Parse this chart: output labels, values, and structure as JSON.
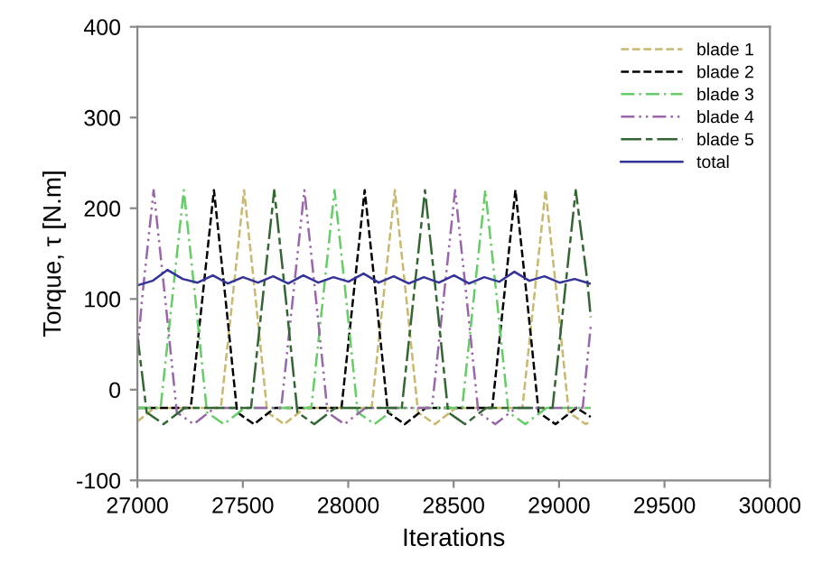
{
  "chart_data": {
    "type": "line",
    "xlabel": "Iterations",
    "ylabel": "Torque, τ [N.m]",
    "xlim": [
      27000,
      30000
    ],
    "xticks": [
      27000,
      27500,
      28000,
      28500,
      29000,
      29500,
      30000
    ],
    "ylim": [
      -100,
      400
    ],
    "yticks": [
      -100,
      0,
      100,
      200,
      300,
      400
    ],
    "grid": false,
    "legend": "top right",
    "marker": "none",
    "series": [
      {
        "name": "blade 1",
        "color": "#c8b870",
        "line_style": "dashed",
        "x": [
          27000,
          27081,
          27396,
          27451,
          27506,
          27561,
          27616,
          27696,
          27796,
          28111,
          28166,
          28221,
          28276,
          28331,
          28411,
          28511,
          28826,
          28881,
          28936,
          28991,
          29046,
          29126,
          29150
        ],
        "values": [
          -35,
          -20,
          -20,
          100,
          220,
          100,
          -25,
          -38,
          -20,
          -20,
          100,
          220,
          100,
          -25,
          -38,
          -20,
          -20,
          100,
          220,
          100,
          -25,
          -38,
          -35
        ]
      },
      {
        "name": "blade 2",
        "color": "#000000",
        "line_style": "dashed",
        "x": [
          27000,
          27253,
          27308,
          27363,
          27418,
          27473,
          27553,
          27653,
          27968,
          28023,
          28078,
          28133,
          28188,
          28268,
          28368,
          28683,
          28738,
          28793,
          28848,
          28903,
          28983,
          29083,
          29150
        ],
        "values": [
          -20,
          -20,
          100,
          220,
          100,
          -25,
          -38,
          -20,
          -20,
          100,
          220,
          100,
          -25,
          -38,
          -20,
          -20,
          100,
          220,
          100,
          -25,
          -38,
          -20,
          -30
        ]
      },
      {
        "name": "blade 3",
        "color": "#66cc66",
        "line_style": "dashdot",
        "x": [
          27000,
          27110,
          27165,
          27220,
          27275,
          27330,
          27410,
          27510,
          27825,
          27880,
          27935,
          27990,
          28045,
          28125,
          28225,
          28540,
          28595,
          28650,
          28705,
          28760,
          28840,
          28940,
          29150
        ],
        "values": [
          -20,
          -20,
          100,
          220,
          100,
          -25,
          -38,
          -20,
          -20,
          100,
          220,
          100,
          -25,
          -38,
          -20,
          -20,
          100,
          220,
          100,
          -25,
          -38,
          -20,
          -20
        ]
      },
      {
        "name": "blade 4",
        "color": "#9966aa",
        "line_style": "dashdotdot",
        "x": [
          27000,
          27022,
          27077,
          27132,
          27187,
          27267,
          27367,
          27682,
          27737,
          27792,
          27847,
          27902,
          27982,
          28082,
          28397,
          28452,
          28507,
          28562,
          28617,
          28697,
          28797,
          29112,
          29150
        ],
        "values": [
          40,
          100,
          220,
          100,
          -25,
          -38,
          -20,
          -20,
          100,
          220,
          100,
          -25,
          -38,
          -20,
          -20,
          100,
          220,
          100,
          -25,
          -38,
          -20,
          -20,
          70
        ]
      },
      {
        "name": "blade 5",
        "color": "#336633",
        "line_style": "longdash",
        "x": [
          27000,
          27044,
          27124,
          27224,
          27539,
          27594,
          27649,
          27704,
          27759,
          27839,
          27939,
          28254,
          28309,
          28364,
          28419,
          28474,
          28554,
          28654,
          28969,
          29024,
          29079,
          29134,
          29150
        ],
        "values": [
          60,
          -25,
          -38,
          -20,
          -20,
          100,
          220,
          100,
          -25,
          -38,
          -20,
          -20,
          100,
          220,
          100,
          -25,
          -38,
          -20,
          -20,
          100,
          220,
          120,
          80
        ]
      },
      {
        "name": "total",
        "color": "#333399",
        "line_style": "solid",
        "x": [
          27000,
          27072,
          27143,
          27215,
          27286,
          27358,
          27429,
          27501,
          27572,
          27644,
          27715,
          27787,
          27858,
          27930,
          28001,
          28073,
          28144,
          28216,
          28287,
          28359,
          28430,
          28502,
          28573,
          28645,
          28716,
          28788,
          28859,
          28931,
          29002,
          29074,
          29145
        ],
        "values": [
          115,
          120,
          132,
          122,
          118,
          126,
          117,
          124,
          118,
          125,
          117,
          126,
          118,
          124,
          119,
          128,
          118,
          125,
          117,
          124,
          118,
          126,
          117,
          124,
          119,
          130,
          120,
          125,
          118,
          122,
          117
        ]
      }
    ]
  }
}
